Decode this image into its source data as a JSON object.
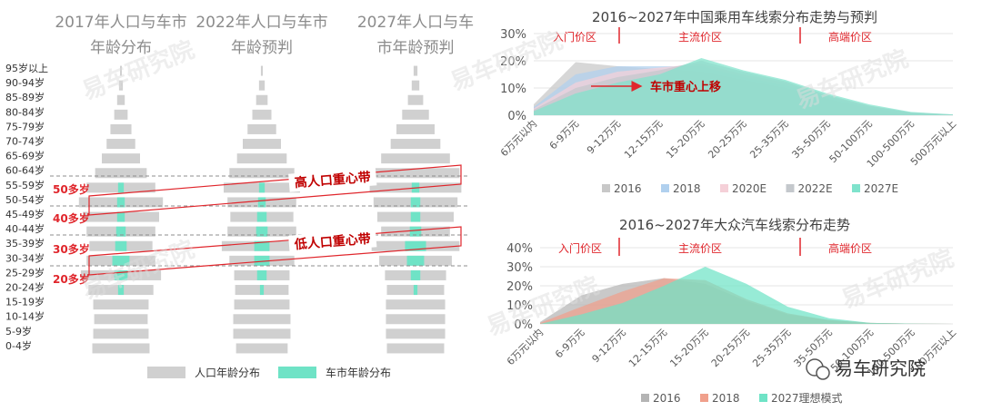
{
  "left": {
    "titles": [
      [
        "2017年人口与车市",
        "年龄分布"
      ],
      [
        "2022年人口与车市",
        "年龄预判"
      ],
      [
        "2027年人口与车",
        "市年龄预判"
      ]
    ],
    "age_groups": [
      "95岁以上",
      "90-94岁",
      "85-89岁",
      "80-84岁",
      "75-79岁",
      "70-74岁",
      "65-69岁",
      "60-64岁",
      "55-59岁",
      "50-54岁",
      "45-49岁",
      "40-44岁",
      "35-39岁",
      "30-34岁",
      "25-29岁",
      "20-24岁",
      "15-19岁",
      "10-14岁",
      "5-9岁",
      "0-4岁"
    ],
    "generation_tags": [
      "50多岁",
      "40多岁",
      "30多岁",
      "20多岁"
    ],
    "bands": [
      "高人口重心带",
      "低人口重心带"
    ],
    "legend": [
      "人口年龄分布",
      "车市年龄分布"
    ],
    "colors": {
      "population": "#d0d0d0",
      "car_market": "#6fe3c6",
      "accent": "#e0262c"
    }
  },
  "chart_data": [
    {
      "type": "bar",
      "title": "2017年人口与车市年龄分布",
      "categories": [
        "95岁以上",
        "90-94岁",
        "85-89岁",
        "80-84岁",
        "75-79岁",
        "70-74岁",
        "65-69岁",
        "60-64岁",
        "55-59岁",
        "50-54岁",
        "45-49岁",
        "40-44岁",
        "35-39岁",
        "30-34岁",
        "25-29岁",
        "20-24岁",
        "15-19岁",
        "10-14岁",
        "5-9岁",
        "0-4岁"
      ],
      "series": [
        {
          "name": "人口年龄分布",
          "values": [
            0.5,
            2,
            4,
            7,
            11,
            15,
            20,
            27,
            36,
            44,
            40,
            36,
            33,
            36,
            42,
            34,
            29,
            28,
            29,
            30
          ]
        },
        {
          "name": "车市年龄分布",
          "values": [
            0,
            0,
            0,
            0,
            0,
            0,
            0,
            0,
            3,
            4,
            4,
            5,
            6,
            9,
            7,
            3,
            0,
            0,
            0,
            0
          ]
        }
      ]
    },
    {
      "type": "bar",
      "title": "2022年人口与车市年龄预判",
      "categories": [
        "95岁以上",
        "90-94岁",
        "85-89岁",
        "80-84岁",
        "75-79岁",
        "70-74岁",
        "65-69岁",
        "60-64岁",
        "55-59岁",
        "50-54岁",
        "45-49岁",
        "40-44岁",
        "35-39岁",
        "30-34岁",
        "25-29岁",
        "20-24岁",
        "15-19岁",
        "10-14岁",
        "5-9岁",
        "0-4岁"
      ],
      "series": [
        {
          "name": "人口年龄分布",
          "values": [
            1,
            3,
            6,
            10,
            15,
            20,
            26,
            34,
            40,
            36,
            33,
            36,
            42,
            34,
            29,
            28,
            29,
            30,
            30,
            27
          ]
        },
        {
          "name": "车市年龄分布",
          "values": [
            0,
            0,
            0,
            0,
            0,
            0,
            0,
            0,
            3,
            4,
            5,
            6,
            8,
            8,
            5,
            2,
            0,
            0,
            0,
            0
          ]
        }
      ]
    },
    {
      "type": "bar",
      "title": "2027年人口与车市年龄预判",
      "categories": [
        "95岁以上",
        "90-94岁",
        "85-89岁",
        "80-84岁",
        "75-79岁",
        "70-74岁",
        "65-69岁",
        "60-64岁",
        "55-59岁",
        "50-54岁",
        "45-49岁",
        "40-44岁",
        "35-39岁",
        "30-34岁",
        "25-29岁",
        "20-24岁",
        "15-19岁",
        "10-14岁",
        "5-9岁",
        "0-4岁"
      ],
      "series": [
        {
          "name": "人口年龄分布",
          "values": [
            2,
            4,
            8,
            14,
            20,
            26,
            36,
            46,
            48,
            44,
            40,
            36,
            46,
            38,
            32,
            30,
            31,
            31,
            31,
            30
          ]
        },
        {
          "name": "车市年龄分布",
          "values": [
            0,
            0,
            0,
            0,
            0,
            0,
            0,
            0,
            4,
            5,
            5,
            6,
            11,
            9,
            5,
            2,
            0,
            0,
            0,
            0
          ]
        }
      ]
    },
    {
      "type": "area",
      "title": "2016~2027年中国乘用车线索分布走势与预判",
      "categories": [
        "6万元以内",
        "6-9万元",
        "9-12万元",
        "12-15万元",
        "15-20万元",
        "20-25万元",
        "25-35万元",
        "35-50万元",
        "50-100万元",
        "100-500万元",
        "500万元以上"
      ],
      "series": [
        {
          "name": "2016",
          "values": [
            4,
            19.5,
            18,
            17,
            16,
            13,
            10,
            6,
            2.5,
            0.5,
            0.2
          ]
        },
        {
          "name": "2018",
          "values": [
            3,
            15,
            18,
            18,
            18,
            14,
            11,
            6.5,
            3,
            0.8,
            0.2
          ]
        },
        {
          "name": "2020E",
          "values": [
            2.5,
            12,
            16,
            17.5,
            19,
            15,
            12,
            7,
            3.5,
            1,
            0.2
          ]
        },
        {
          "name": "2022E",
          "values": [
            2,
            10,
            14,
            16.5,
            20,
            16,
            12.5,
            7.5,
            3.5,
            1,
            0.3
          ]
        },
        {
          "name": "2027E",
          "values": [
            1.5,
            8,
            12,
            15,
            21,
            16.5,
            13,
            8,
            4,
            1.2,
            0.3
          ]
        }
      ],
      "ylim": [
        0,
        30
      ],
      "yticks": [
        "0%",
        "10%",
        "20%",
        "30%"
      ],
      "zones": [
        "入门价区",
        "主流价区",
        "高端价区"
      ],
      "annotation": "车市重心上移",
      "series_colors": [
        "#c8c8c8",
        "#b0d0ee",
        "#f5d0d8",
        "#c4c8cc",
        "#7fe3cc"
      ]
    },
    {
      "type": "area",
      "title": "2016~2027年大众汽车线索分布走势",
      "categories": [
        "6万元以内",
        "6-9万元",
        "9-12万元",
        "12-15万元",
        "15-20万元",
        "20-25万元",
        "25-35万元",
        "35-50万元",
        "50-100万元",
        "100-500万元",
        "500万元以上"
      ],
      "series": [
        {
          "name": "2016",
          "values": [
            1,
            15,
            21,
            24,
            21,
            12,
            5,
            2,
            0.5,
            0.2,
            0
          ]
        },
        {
          "name": "2018",
          "values": [
            0.5,
            9,
            17,
            24,
            23,
            13,
            5.5,
            2,
            0.5,
            0.2,
            0
          ]
        },
        {
          "name": "2027理想模式",
          "values": [
            0,
            5,
            11,
            20,
            30,
            21,
            9,
            3,
            0.5,
            0.2,
            0
          ]
        }
      ],
      "ylim": [
        0,
        40
      ],
      "yticks": [
        "0%",
        "10%",
        "20%",
        "30%",
        "40%"
      ],
      "zones": [
        "入门价区",
        "主流价区",
        "高端价区"
      ],
      "series_colors": [
        "#b4b4b4",
        "#f0a08c",
        "#6fe3c6"
      ]
    }
  ],
  "watermark": "易车研究院",
  "footer_logo": "易车研究院"
}
